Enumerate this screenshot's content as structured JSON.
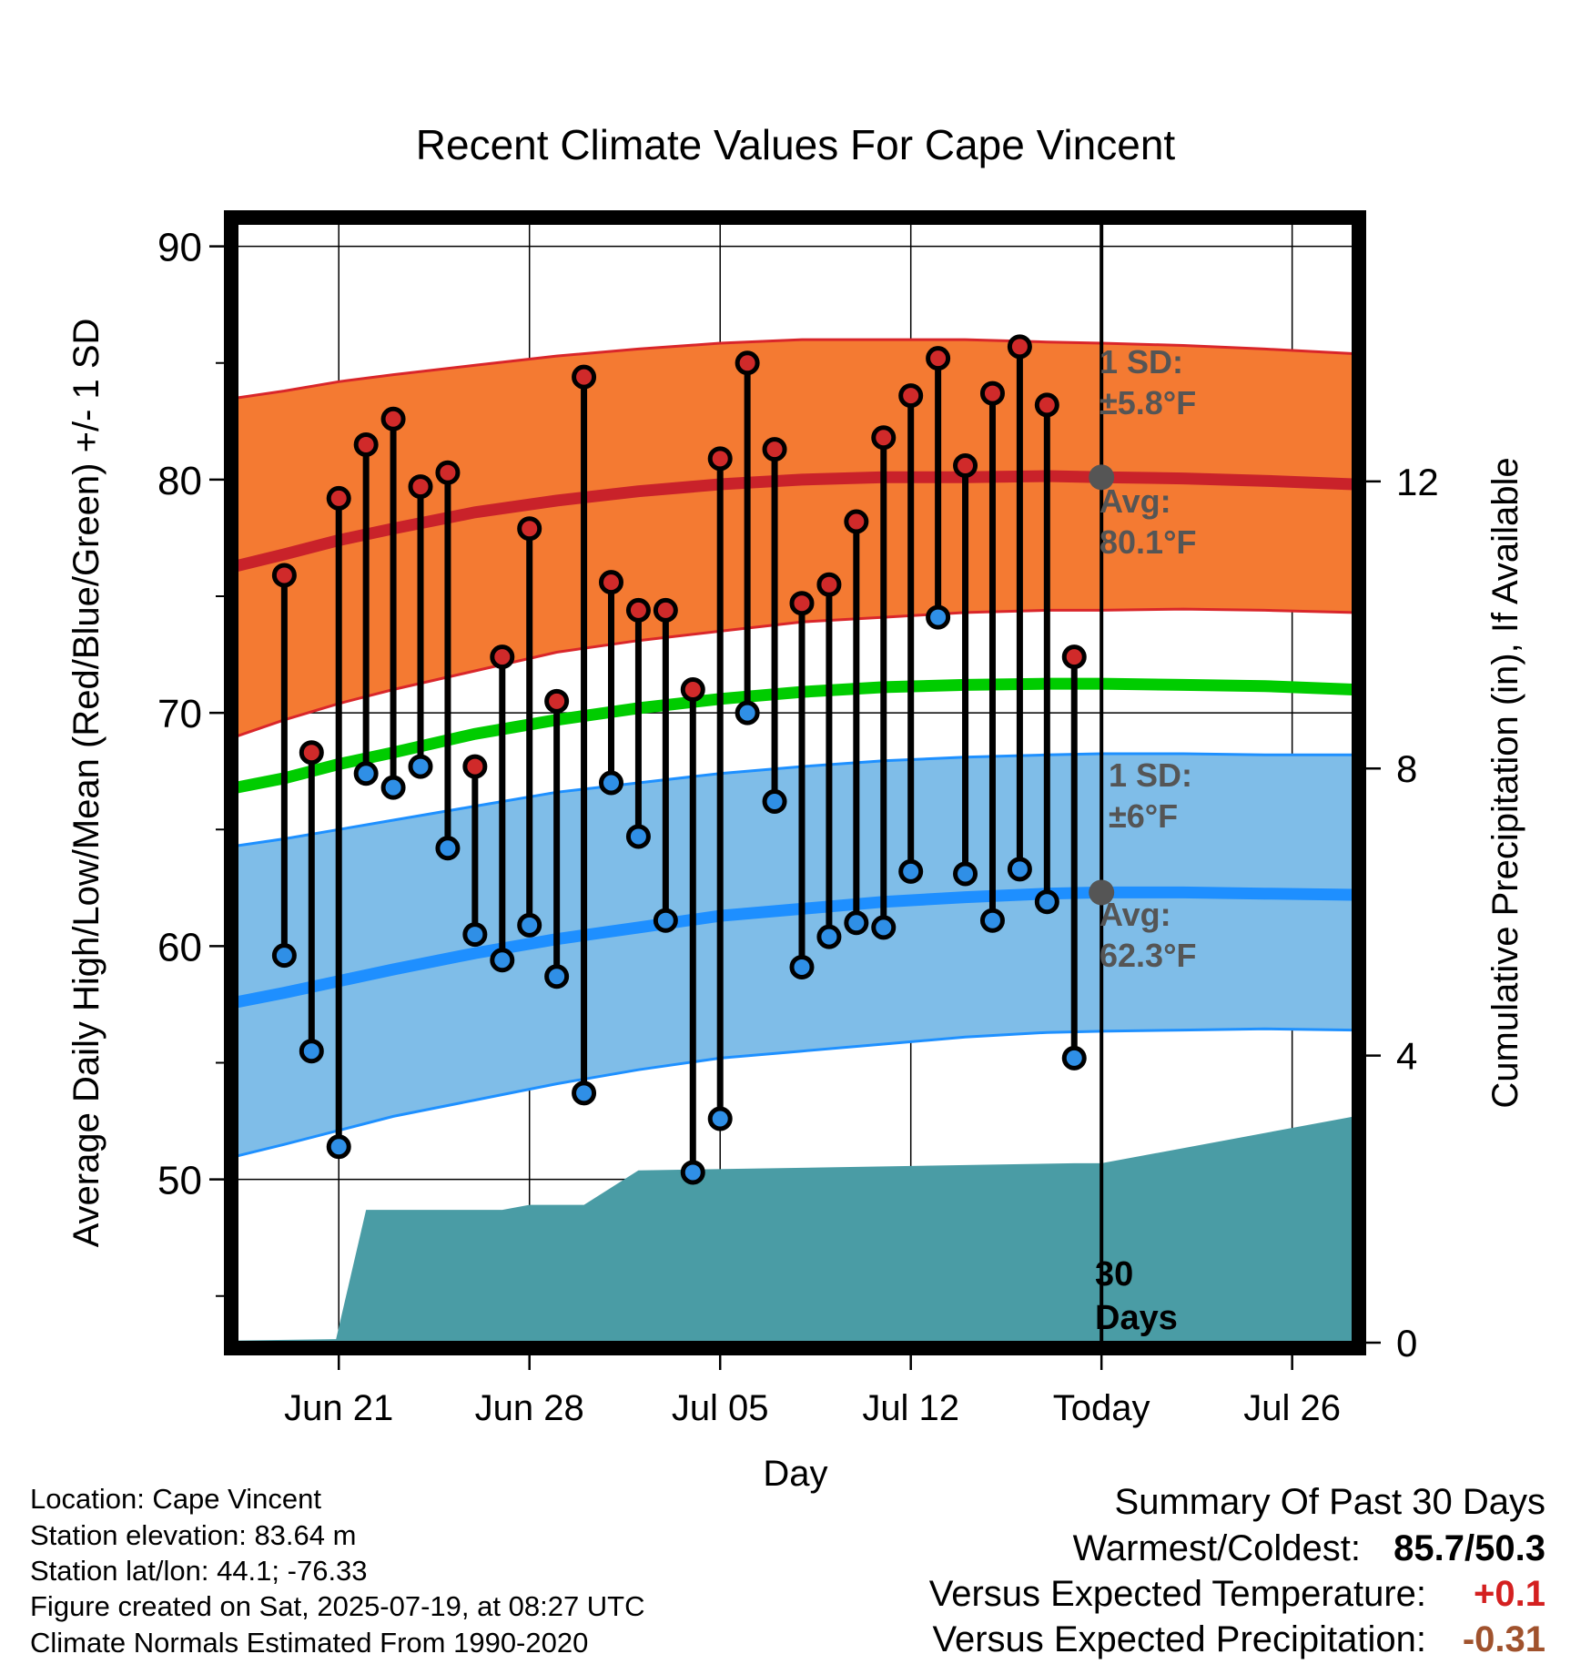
{
  "chart_data": {
    "type": "line",
    "title": "Recent Climate Values For Cape Vincent",
    "xlabel": "Day",
    "ylabel": "Average Daily High/Low/Mean (Red/Blue/Green) +/- 1 SD",
    "y2label": "Cumulative Precipitation (in), If Available",
    "x_ticks": [
      {
        "day": 3,
        "label": "Jun 21"
      },
      {
        "day": 10,
        "label": "Jun 28"
      },
      {
        "day": 17,
        "label": "Jul 05"
      },
      {
        "day": 24,
        "label": "Jul 12"
      },
      {
        "day": 31,
        "label": "Today"
      },
      {
        "day": 38,
        "label": "Jul 26"
      }
    ],
    "xlim": [
      -0.75,
      40.25
    ],
    "ylim": [
      43,
      91
    ],
    "y_ticks": [
      50,
      60,
      70,
      80,
      90
    ],
    "y2lim": [
      0,
      15.6
    ],
    "y2_ticks": [
      0,
      4,
      8,
      12
    ],
    "today_day": 31,
    "normals": {
      "days": [
        -0.75,
        1,
        3,
        5,
        8,
        11,
        14,
        17,
        20,
        23,
        26,
        29,
        31,
        34,
        37,
        40.25
      ],
      "high_mean": [
        76.3,
        76.8,
        77.4,
        77.9,
        78.6,
        79.1,
        79.5,
        79.8,
        80.0,
        80.1,
        80.1,
        80.15,
        80.1,
        80.05,
        79.95,
        79.8
      ],
      "high_upper": [
        83.5,
        83.8,
        84.2,
        84.5,
        84.9,
        85.3,
        85.6,
        85.85,
        86.0,
        86.0,
        86.0,
        85.9,
        85.85,
        85.75,
        85.6,
        85.4
      ],
      "high_lower": [
        69.0,
        69.7,
        70.4,
        71.0,
        71.8,
        72.6,
        73.1,
        73.5,
        73.9,
        74.1,
        74.3,
        74.4,
        74.4,
        74.45,
        74.4,
        74.3
      ],
      "low_mean": [
        57.6,
        58.0,
        58.5,
        59.0,
        59.7,
        60.3,
        60.8,
        61.3,
        61.6,
        61.9,
        62.1,
        62.25,
        62.3,
        62.3,
        62.25,
        62.2
      ],
      "low_upper": [
        64.3,
        64.6,
        65.0,
        65.4,
        66.0,
        66.6,
        67.0,
        67.4,
        67.7,
        67.95,
        68.1,
        68.2,
        68.25,
        68.25,
        68.2,
        68.2
      ],
      "low_lower": [
        51.0,
        51.5,
        52.1,
        52.7,
        53.4,
        54.1,
        54.7,
        55.2,
        55.5,
        55.8,
        56.1,
        56.3,
        56.35,
        56.4,
        56.45,
        56.4
      ],
      "mean": [
        66.8,
        67.2,
        67.8,
        68.3,
        69.1,
        69.7,
        70.2,
        70.6,
        70.9,
        71.1,
        71.2,
        71.25,
        71.25,
        71.2,
        71.15,
        71.0
      ],
      "labels": {
        "high_sd": "1 SD:",
        "high_sd_value": "±5.8°F",
        "high_avg": "Avg:",
        "high_avg_value": "80.1°F",
        "low_sd": "1 SD:",
        "low_sd_value": "±6°F",
        "low_avg": "Avg:",
        "low_avg_value": "62.3°F"
      },
      "today_high": 80.1,
      "today_low": 62.3
    },
    "observations": {
      "days": [
        1,
        2,
        3,
        4,
        5,
        6,
        7,
        8,
        9,
        10,
        11,
        12,
        13,
        14,
        15,
        16,
        17,
        18,
        19,
        20,
        21,
        22,
        23,
        24,
        25,
        26,
        27,
        28,
        29,
        30
      ],
      "highs": [
        75.9,
        68.3,
        79.2,
        81.5,
        82.6,
        79.7,
        80.3,
        67.7,
        72.4,
        77.9,
        70.5,
        84.4,
        75.6,
        74.4,
        74.4,
        71.0,
        80.9,
        85.0,
        81.3,
        74.7,
        75.5,
        78.2,
        81.8,
        83.6,
        85.2,
        80.6,
        83.7,
        85.7,
        83.2,
        72.4
      ],
      "lows": [
        59.6,
        55.5,
        51.4,
        67.4,
        66.8,
        67.7,
        64.2,
        60.5,
        59.4,
        60.9,
        58.7,
        53.7,
        67.0,
        64.7,
        61.1,
        50.3,
        52.6,
        70.0,
        66.2,
        59.1,
        60.4,
        61.0,
        60.8,
        63.2,
        74.1,
        63.1,
        61.1,
        63.3,
        61.9,
        55.2
      ]
    },
    "precipitation": {
      "days": [
        -0.75,
        2.9,
        4.0,
        9.0,
        10.0,
        12.0,
        14.0,
        30.0,
        31.0,
        40.25
      ],
      "cumulative": [
        0.03,
        0.05,
        1.85,
        1.85,
        1.92,
        1.92,
        2.4,
        2.5,
        2.5,
        3.15
      ]
    },
    "precip_annotation": [
      "30",
      "Days"
    ]
  },
  "info": {
    "location": "Location: Cape Vincent",
    "elevation": "Station elevation: 83.64 m",
    "latlon": "Station lat/lon: 44.1; -76.33",
    "created": "Figure created on Sat, 2025-07-19, at 08:27 UTC",
    "normals": "Climate Normals Estimated From 1990-2020"
  },
  "summary": {
    "title": "Summary Of Past 30 Days",
    "warmest_label": "Warmest/Coldest:",
    "warmest_value": "85.7/50.3",
    "temp_label": "Versus Expected Temperature:",
    "temp_value": "+0.1",
    "precip_label": "Versus Expected Precipitation:",
    "precip_value": "-0.31"
  },
  "colors": {
    "high_band": "#f47a32",
    "high_band_edge": "#d9262a",
    "high_mean": "#c9222a",
    "low_band": "#7fbde8",
    "low_band_edge": "#1e90ff",
    "low_mean": "#1e8fff",
    "mean": "#00cc00",
    "precip": "#4a9ca5",
    "high_dot": "#d02a2a",
    "low_dot": "#2f8fe6",
    "today_marker": "#555555",
    "annotation": "#555555",
    "temp_anom": "#d42020",
    "precip_anom": "#a0522d"
  }
}
